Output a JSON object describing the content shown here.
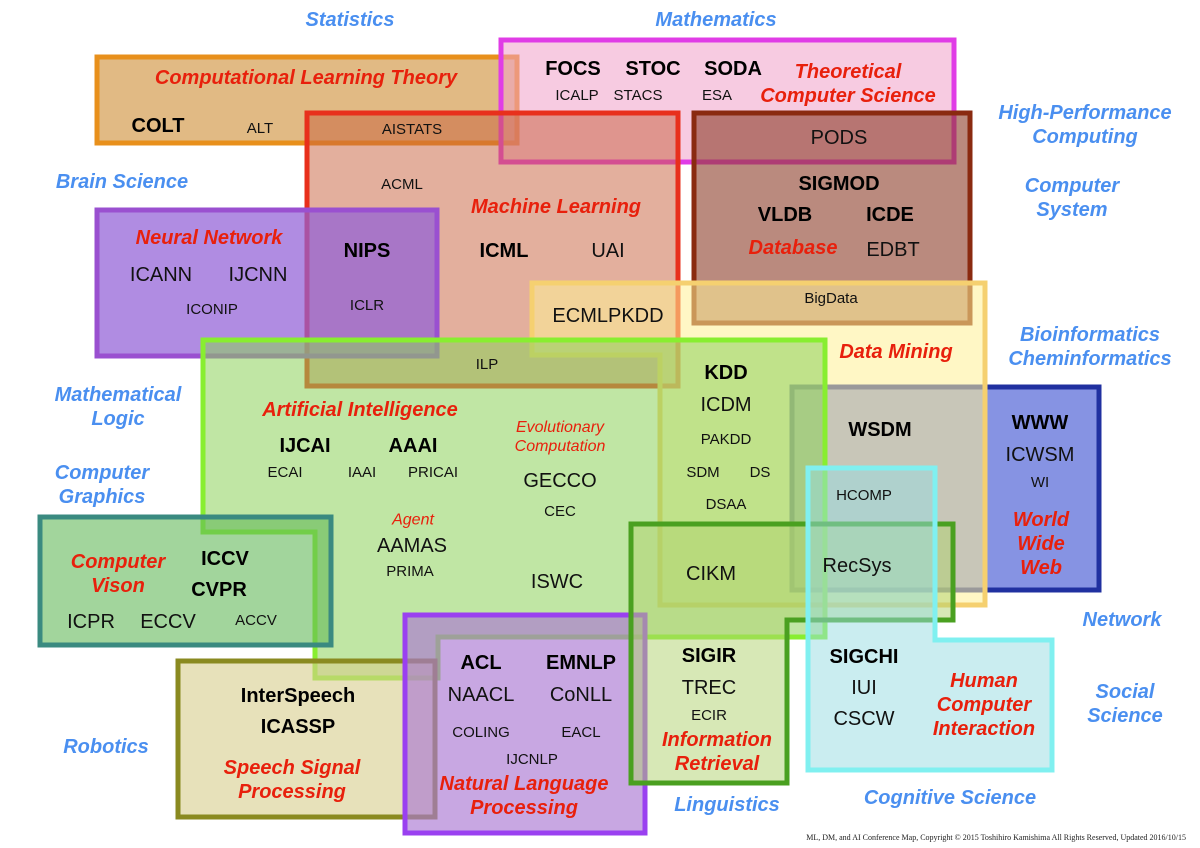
{
  "colors": {
    "field_label": "#4a8ff0",
    "area_label": "#e8200c"
  },
  "fields": [
    "Statistics",
    "Mathematics",
    "High-Performance\nComputing",
    "Brain Science",
    "Computer\nSystem",
    "Bioinformatics\nCheminformatics",
    "Mathematical\nLogic",
    "Computer\nGraphics",
    "Network",
    "Social\nScience",
    "Robotics",
    "Linguistics",
    "Cognitive Science"
  ],
  "areas": {
    "clt": "Computational Learning Theory",
    "tcs": "Theoretical\nComputer Science",
    "ml": "Machine Learning",
    "db": "Database",
    "nn": "Neural Network",
    "dm": "Data Mining",
    "ai": "Artificial Intelligence",
    "ec": "Evolutionary\nComputation",
    "agent": "Agent",
    "www": "World\nWide\nWeb",
    "cv": "Computer\nVison",
    "speech": "Speech Signal\nProcessing",
    "nlp": "Natural Language\nProcessing",
    "ir": "Information\nRetrieval",
    "hci": "Human\nComputer\nInteraction"
  },
  "venues": {
    "COLT": "COLT",
    "ALT": "ALT",
    "AISTATS": "AISTATS",
    "FOCS": "FOCS",
    "STOC": "STOC",
    "SODA": "SODA",
    "ICALP": "ICALP",
    "STACS": "STACS",
    "ESA": "ESA",
    "PODS": "PODS",
    "SIGMOD": "SIGMOD",
    "VLDB": "VLDB",
    "ICDE": "ICDE",
    "EDBT": "EDBT",
    "BigData": "BigData",
    "ACML": "ACML",
    "NIPS": "NIPS",
    "ICML": "ICML",
    "UAI": "UAI",
    "ICLR": "ICLR",
    "ECMLPKDD": "ECMLPKDD",
    "ILP": "ILP",
    "ICANN": "ICANN",
    "IJCNN": "IJCNN",
    "ICONIP": "ICONIP",
    "KDD": "KDD",
    "ICDM": "ICDM",
    "PAKDD": "PAKDD",
    "SDM": "SDM",
    "DS": "DS",
    "DSAA": "DSAA",
    "CIKM": "CIKM",
    "WSDM": "WSDM",
    "HCOMP": "HCOMP",
    "RecSys": "RecSys",
    "WWW": "WWW",
    "ICWSM": "ICWSM",
    "WI": "WI",
    "IJCAI": "IJCAI",
    "AAAI": "AAAI",
    "ECAI": "ECAI",
    "IAAI": "IAAI",
    "PRICAI": "PRICAI",
    "GECCO": "GECCO",
    "CEC": "CEC",
    "AAMAS": "AAMAS",
    "PRIMA": "PRIMA",
    "ISWC": "ISWC",
    "ICCV": "ICCV",
    "CVPR": "CVPR",
    "ICPR": "ICPR",
    "ECCV": "ECCV",
    "ACCV": "ACCV",
    "InterSpeech": "InterSpeech",
    "ICASSP": "ICASSP",
    "ACL": "ACL",
    "EMNLP": "EMNLP",
    "NAACL": "NAACL",
    "CoNLL": "CoNLL",
    "COLING": "COLING",
    "EACL": "EACL",
    "IJCNLP": "IJCNLP",
    "SIGIR": "SIGIR",
    "TREC": "TREC",
    "ECIR": "ECIR",
    "SIGCHI": "SIGCHI",
    "IUI": "IUI",
    "CSCW": "CSCW"
  },
  "footer": "ML, DM, and AI Conference Map, Copyright © 2015 Toshihiro Kamishima All Rights Reserved, Updated 2016/10/15"
}
